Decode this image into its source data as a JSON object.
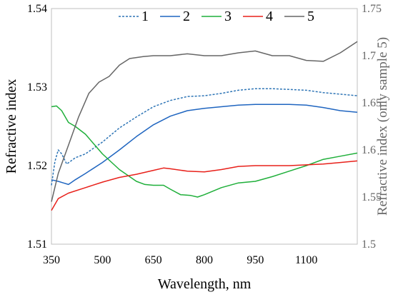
{
  "chart_data": {
    "type": "line",
    "xlabel": "Wavelength, nm",
    "ylabel": "Refractive index",
    "y2label": "Refractive index (only sample 5)",
    "xlim": [
      350,
      1250
    ],
    "ylim": [
      1.51,
      1.54
    ],
    "y2lim": [
      1.5,
      1.75
    ],
    "x_ticks": [
      350,
      500,
      650,
      800,
      950,
      1100
    ],
    "y_ticks": [
      1.51,
      1.52,
      1.53,
      1.54
    ],
    "y2_ticks": [
      1.5,
      1.55,
      1.6,
      1.65,
      1.7,
      1.75
    ],
    "legend_position": "top",
    "grid": false,
    "series": [
      {
        "name": "1",
        "axis": "left",
        "color": "#2E75B6",
        "dash": true,
        "x": [
          350,
          360,
          370,
          380,
          395,
          420,
          450,
          500,
          550,
          600,
          650,
          700,
          750,
          800,
          850,
          900,
          950,
          1000,
          1050,
          1100,
          1150,
          1200,
          1250
        ],
        "y": [
          1.5175,
          1.5205,
          1.522,
          1.5215,
          1.5202,
          1.521,
          1.5215,
          1.523,
          1.5248,
          1.5262,
          1.5275,
          1.5283,
          1.5288,
          1.5289,
          1.5292,
          1.5296,
          1.5298,
          1.5298,
          1.5297,
          1.5296,
          1.5293,
          1.5291,
          1.5289
        ]
      },
      {
        "name": "2",
        "axis": "left",
        "color": "#1F65C0",
        "dash": false,
        "x": [
          350,
          370,
          385,
          400,
          420,
          450,
          500,
          550,
          600,
          650,
          700,
          750,
          800,
          850,
          900,
          950,
          1000,
          1050,
          1100,
          1150,
          1200,
          1250
        ],
        "y": [
          1.5182,
          1.518,
          1.5178,
          1.5176,
          1.5182,
          1.519,
          1.5204,
          1.522,
          1.5237,
          1.5252,
          1.5263,
          1.527,
          1.5273,
          1.5275,
          1.5277,
          1.5278,
          1.5278,
          1.5278,
          1.5277,
          1.5274,
          1.527,
          1.5268
        ]
      },
      {
        "name": "3",
        "axis": "left",
        "color": "#1FAF3A",
        "dash": false,
        "x": [
          350,
          365,
          380,
          400,
          420,
          450,
          500,
          550,
          600,
          625,
          650,
          680,
          700,
          730,
          760,
          780,
          800,
          850,
          900,
          950,
          1000,
          1050,
          1100,
          1150,
          1200,
          1250
        ],
        "y": [
          1.5275,
          1.5276,
          1.527,
          1.5255,
          1.525,
          1.524,
          1.5215,
          1.5195,
          1.518,
          1.5176,
          1.5175,
          1.5175,
          1.517,
          1.5163,
          1.5162,
          1.516,
          1.5163,
          1.5172,
          1.5178,
          1.518,
          1.5186,
          1.5193,
          1.52,
          1.5208,
          1.5212,
          1.5216
        ]
      },
      {
        "name": "4",
        "axis": "left",
        "color": "#E8201A",
        "dash": false,
        "x": [
          350,
          370,
          400,
          450,
          500,
          550,
          600,
          650,
          680,
          700,
          750,
          800,
          850,
          900,
          950,
          1000,
          1050,
          1100,
          1150,
          1200,
          1250
        ],
        "y": [
          1.5143,
          1.5158,
          1.5165,
          1.5172,
          1.5179,
          1.5185,
          1.5189,
          1.5194,
          1.5197,
          1.5196,
          1.5193,
          1.5192,
          1.5195,
          1.5199,
          1.52,
          1.52,
          1.52,
          1.5201,
          1.5202,
          1.5204,
          1.5206
        ]
      },
      {
        "name": "5",
        "axis": "right",
        "color": "#666666",
        "dash": false,
        "x": [
          350,
          370,
          400,
          430,
          460,
          490,
          520,
          550,
          580,
          620,
          650,
          700,
          750,
          800,
          850,
          900,
          950,
          1000,
          1050,
          1100,
          1150,
          1200,
          1250
        ],
        "y": [
          1.545,
          1.575,
          1.605,
          1.635,
          1.66,
          1.672,
          1.678,
          1.69,
          1.697,
          1.699,
          1.7,
          1.7,
          1.702,
          1.7,
          1.7,
          1.703,
          1.705,
          1.7,
          1.7,
          1.695,
          1.694,
          1.703,
          1.715
        ]
      }
    ]
  }
}
